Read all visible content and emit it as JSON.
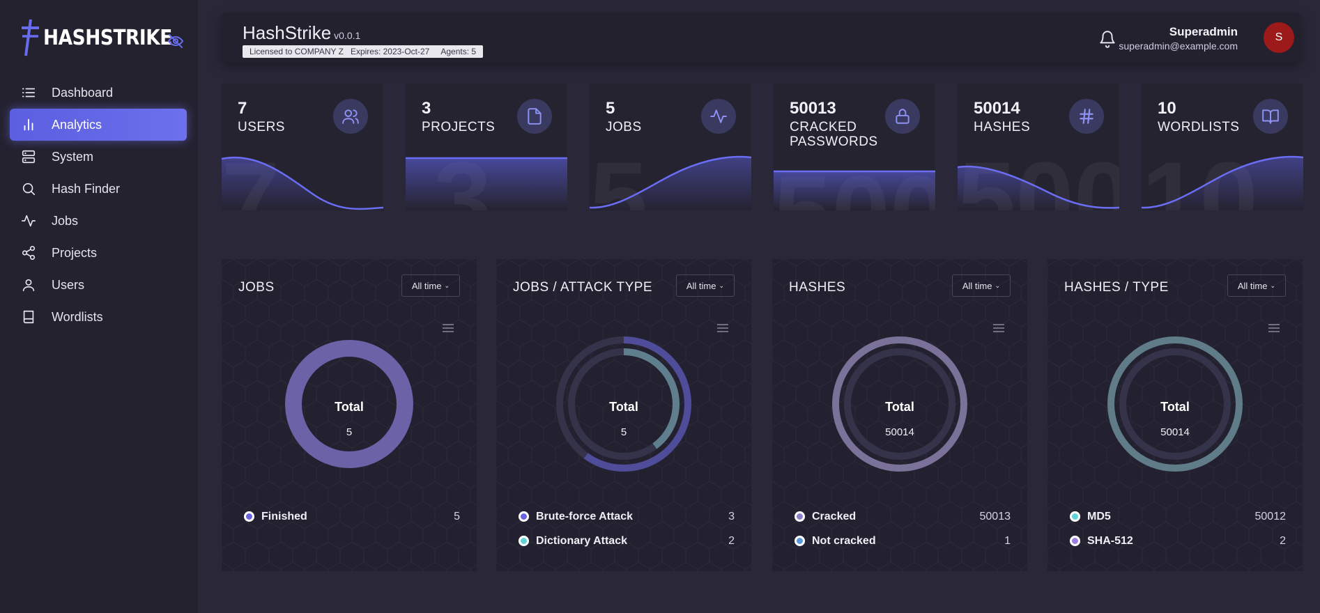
{
  "brand": {
    "name": "HASHSTRIKE"
  },
  "sidebar": {
    "items": [
      {
        "label": "Dashboard",
        "icon": "list-icon"
      },
      {
        "label": "Analytics",
        "icon": "bar-chart-icon",
        "active": true
      },
      {
        "label": "System",
        "icon": "server-icon"
      },
      {
        "label": "Hash Finder",
        "icon": "search-icon"
      },
      {
        "label": "Jobs",
        "icon": "activity-icon"
      },
      {
        "label": "Projects",
        "icon": "share-icon"
      },
      {
        "label": "Users",
        "icon": "user-icon"
      },
      {
        "label": "Wordlists",
        "icon": "book-icon"
      }
    ]
  },
  "header": {
    "title": "HashStrike",
    "version": "v0.0.1",
    "license": "Licensed to COMPANY Z   Expires: 2023-Oct-27     Agents: 5",
    "user_name": "Superadmin",
    "user_email": "superadmin@example.com",
    "avatar_initial": "S"
  },
  "stats": [
    {
      "value": "7",
      "label": "USERS",
      "icon": "users-icon"
    },
    {
      "value": "3",
      "label": "PROJECTS",
      "icon": "file-icon"
    },
    {
      "value": "5",
      "label": "JOBS",
      "icon": "activity-icon"
    },
    {
      "value": "50013",
      "label": "CRACKED PASSWORDS",
      "icon": "lock-icon"
    },
    {
      "value": "50014",
      "label": "HASHES",
      "icon": "hash-icon"
    },
    {
      "value": "10",
      "label": "WORDLISTS",
      "icon": "book-open-icon"
    }
  ],
  "colors": {
    "accent": "#6366f1",
    "finished": "#6b62a8",
    "brute_force": "#4f4c9a",
    "dictionary": "#5f7f8e",
    "cracked": "#7a7298",
    "md5": "#607c88"
  },
  "charts": [
    {
      "title": "JOBS",
      "filter": "All time",
      "total_label": "Total",
      "total": "5",
      "legend": [
        {
          "name": "Finished",
          "value": "5"
        }
      ]
    },
    {
      "title": "JOBS / ATTACK TYPE",
      "filter": "All time",
      "total_label": "Total",
      "total": "5",
      "legend": [
        {
          "name": "Brute-force Attack",
          "value": "3"
        },
        {
          "name": "Dictionary Attack",
          "value": "2"
        }
      ]
    },
    {
      "title": "HASHES",
      "filter": "All time",
      "total_label": "Total",
      "total": "50014",
      "legend": [
        {
          "name": "Cracked",
          "value": "50013"
        },
        {
          "name": "Not cracked",
          "value": "1"
        }
      ]
    },
    {
      "title": "HASHES / TYPE",
      "filter": "All time",
      "total_label": "Total",
      "total": "50014",
      "legend": [
        {
          "name": "MD5",
          "value": "50012"
        },
        {
          "name": "SHA-512",
          "value": "2"
        }
      ]
    }
  ]
}
